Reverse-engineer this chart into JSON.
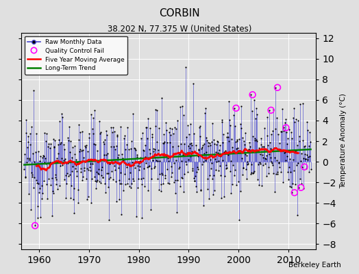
{
  "title": "CORBIN",
  "subtitle": "38.202 N, 77.375 W (United States)",
  "ylabel": "Temperature Anomaly (°C)",
  "xlabel_bottom": "Berkeley Earth",
  "ylim": [
    -8.5,
    12.5
  ],
  "yticks": [
    -8,
    -6,
    -4,
    -2,
    0,
    2,
    4,
    6,
    8,
    10,
    12
  ],
  "xlim": [
    1956.5,
    2015.5
  ],
  "xticks": [
    1960,
    1970,
    1980,
    1990,
    2000,
    2010
  ],
  "start_year": 1957,
  "end_year": 2014,
  "bg_color": "#e0e0e0",
  "grid_color": "white",
  "raw_color": "#4444cc",
  "dot_color": "black",
  "qc_color": "magenta",
  "moving_avg_color": "red",
  "trend_color": "green",
  "seed": 12345
}
